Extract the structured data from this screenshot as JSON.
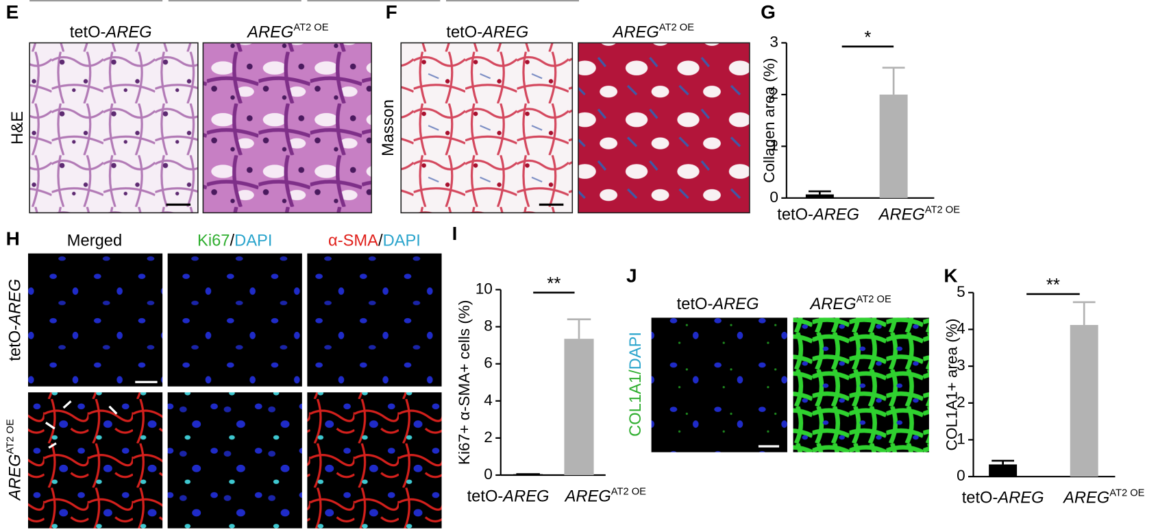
{
  "panels": [
    {
      "letter": "E",
      "columns": [
        [
          {
            "text": "tetO-"
          },
          {
            "text": "AREG",
            "italic": true
          }
        ],
        [
          {
            "text": "AREG",
            "italic": true
          },
          {
            "text": "AT2 OE",
            "sup": true
          }
        ]
      ],
      "rows": [
        [
          {
            "text": "H&E"
          }
        ]
      ]
    },
    {
      "letter": "F",
      "columns": [
        [
          {
            "text": "tetO-"
          },
          {
            "text": "AREG",
            "italic": true
          }
        ],
        [
          {
            "text": "AREG",
            "italic": true
          },
          {
            "text": "AT2 OE",
            "sup": true
          }
        ]
      ],
      "rows": [
        [
          {
            "text": "Masson"
          }
        ]
      ]
    },
    {
      "letter": "H",
      "columns": [
        [
          {
            "text": "Merged"
          }
        ],
        [
          {
            "text": "Ki67",
            "color": "#2fae2f"
          },
          {
            "text": "/"
          },
          {
            "text": "DAPI",
            "color": "#2aa4cc"
          }
        ],
        [
          {
            "text": "α-SMA",
            "color": "#e0201b"
          },
          {
            "text": "/"
          },
          {
            "text": "DAPI",
            "color": "#2aa4cc"
          }
        ]
      ],
      "rows": [
        [
          {
            "text": "tetO-"
          },
          {
            "text": "AREG",
            "italic": true
          }
        ],
        [
          {
            "text": "AREG",
            "italic": true
          },
          {
            "text": "AT2 OE",
            "sup": true
          }
        ]
      ]
    },
    {
      "letter": "J",
      "columns": [
        [
          {
            "text": "tetO-"
          },
          {
            "text": "AREG",
            "italic": true
          }
        ],
        [
          {
            "text": "AREG",
            "italic": true
          },
          {
            "text": "AT2 OE",
            "sup": true
          }
        ]
      ],
      "rows": [
        [
          {
            "text": "COL1A1",
            "color": "#2fae2f"
          },
          {
            "text": "/",
            "color": "#2fae2f"
          },
          {
            "text": "DAPI",
            "color": "#2aa4cc"
          }
        ]
      ]
    }
  ],
  "chart_data": [
    {
      "type": "bar",
      "panel": "G",
      "ylabel": "Collagen area (%)",
      "categories": [
        [
          {
            "text": "tetO-"
          },
          {
            "text": "AREG",
            "italic": true
          }
        ],
        [
          {
            "text": "AREG",
            "italic": true
          },
          {
            "text": "AT2 OE",
            "sup": true
          }
        ]
      ],
      "values": [
        0.07,
        2.0
      ],
      "errors": [
        0.06,
        0.52
      ],
      "colors": [
        "#000000",
        "#b3b3b3"
      ],
      "ylim": [
        0,
        3
      ],
      "yticks": [
        0,
        1,
        2,
        3
      ],
      "significance": "*"
    },
    {
      "type": "bar",
      "panel": "I",
      "ylabel": "Ki67+ α-SMA+ cells (%)",
      "categories": [
        [
          {
            "text": "tetO-"
          },
          {
            "text": "AREG",
            "italic": true
          }
        ],
        [
          {
            "text": "AREG",
            "italic": true
          },
          {
            "text": "AT2 OE",
            "sup": true
          }
        ]
      ],
      "values": [
        0.05,
        7.35
      ],
      "errors": [
        0,
        1.05
      ],
      "colors": [
        "#000000",
        "#b3b3b3"
      ],
      "ylim": [
        0,
        10
      ],
      "yticks": [
        0,
        2,
        4,
        6,
        8,
        10
      ],
      "significance": "**"
    },
    {
      "type": "bar",
      "panel": "K",
      "ylabel": "COL1A1+ area (%)",
      "categories": [
        [
          {
            "text": "tetO-"
          },
          {
            "text": "AREG",
            "italic": true
          }
        ],
        [
          {
            "text": "AREG",
            "italic": true
          },
          {
            "text": "AT2 OE",
            "sup": true
          }
        ]
      ],
      "values": [
        0.33,
        4.12
      ],
      "errors": [
        0.1,
        0.62
      ],
      "colors": [
        "#000000",
        "#b3b3b3"
      ],
      "ylim": [
        0,
        5
      ],
      "yticks": [
        0,
        1,
        2,
        3,
        4,
        5
      ],
      "significance": "**"
    }
  ]
}
